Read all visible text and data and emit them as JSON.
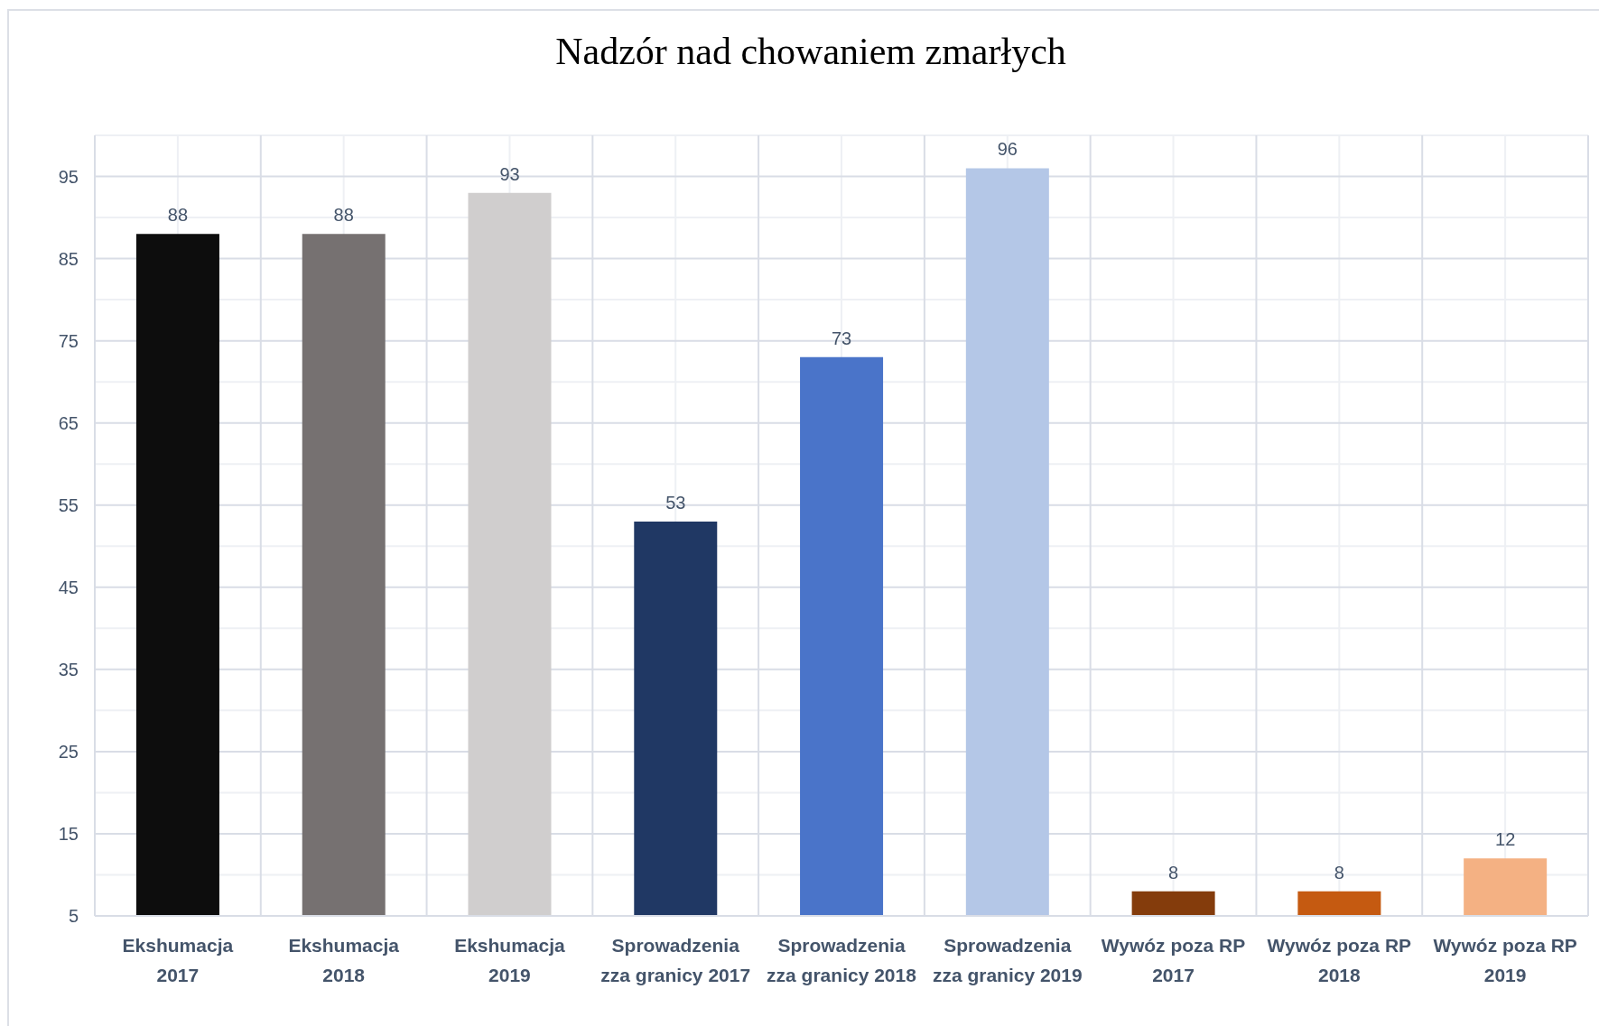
{
  "chart_data": {
    "type": "bar",
    "title": "Nadzór nad chowaniem zmarłych",
    "categories": [
      "Ekshumacja 2017",
      "Ekshumacja 2018",
      "Ekshumacja 2019",
      "Sprowadzenia zza granicy 2017",
      "Sprowadzenia zza granicy 2018",
      "Sprowadzenia zza granicy 2019",
      "Wywóz poza RP 2017",
      "Wywóz poza RP 2018",
      "Wywóz poza RP 2019"
    ],
    "values": [
      88,
      88,
      93,
      53,
      73,
      96,
      8,
      8,
      12
    ],
    "colors": [
      "#0d0d0d",
      "#767171",
      "#d0cece",
      "#203864",
      "#4a74c9",
      "#b4c7e7",
      "#843c0c",
      "#c55a11",
      "#f4b183"
    ],
    "ylim": [
      5,
      100
    ],
    "yticks": [
      5,
      15,
      25,
      35,
      45,
      55,
      65,
      75,
      85,
      95
    ],
    "grid": true,
    "data_labels": true
  }
}
